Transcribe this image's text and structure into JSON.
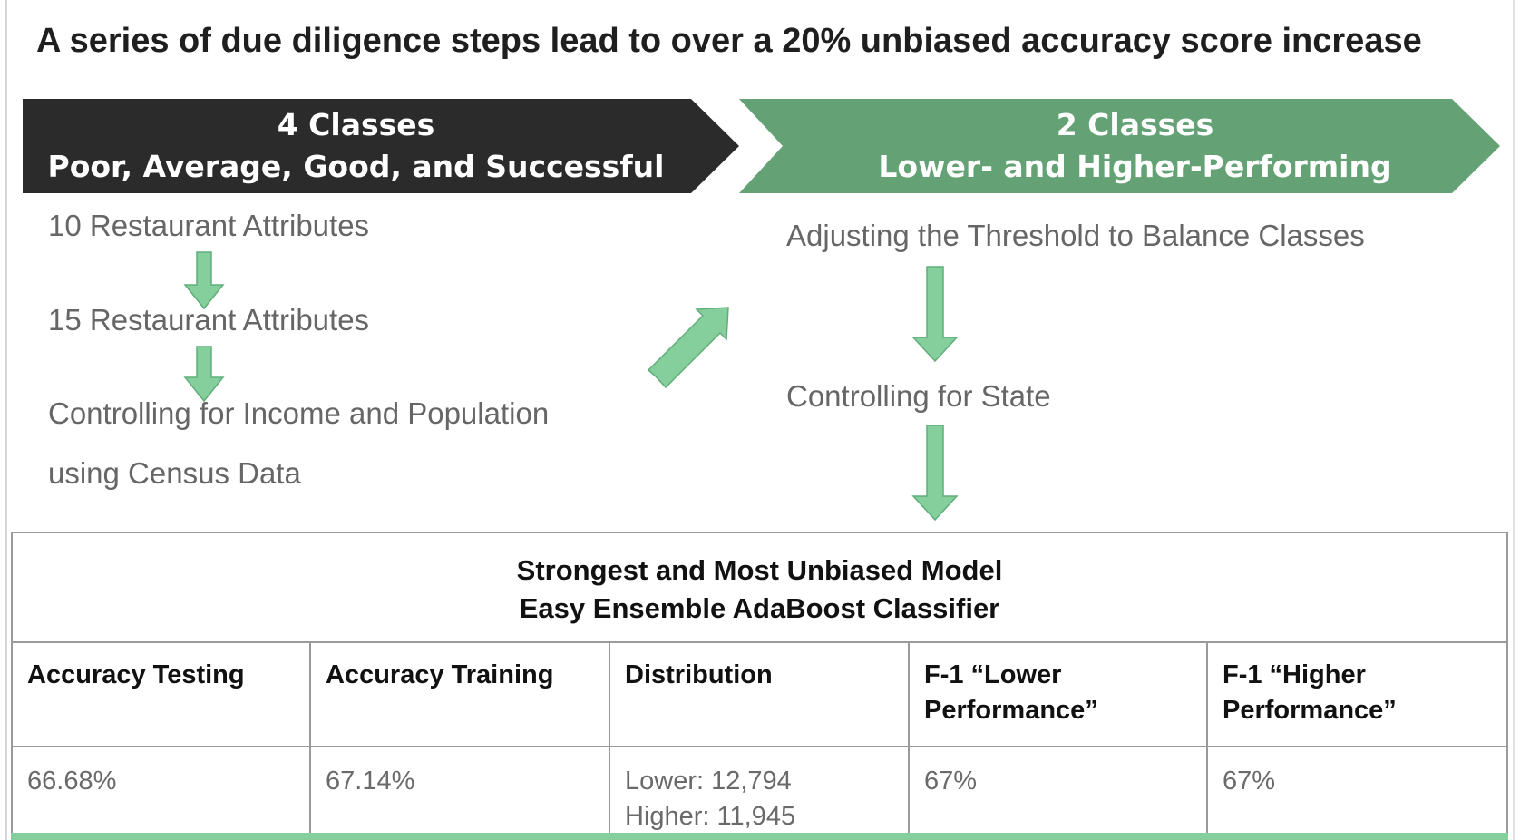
{
  "title": "A series of due diligence steps lead to over a 20% unbiased accuracy score increase",
  "banners": {
    "left": {
      "line1": "4 Classes",
      "line2": "Poor, Average, Good, and Successful",
      "color": "#2b2b2b"
    },
    "right": {
      "line1": "2 Classes",
      "line2": "Lower- and Higher-Performing",
      "color": "#64a275"
    }
  },
  "left_steps": [
    "10 Restaurant Attributes",
    "15 Restaurant Attributes",
    "Controlling for Income and Population",
    "using Census Data"
  ],
  "right_steps": [
    "Adjusting the Threshold to Balance Classes",
    "Controlling for State"
  ],
  "arrow_icon": "arrow-icon",
  "arrow_color": "#85cf9d",
  "results": {
    "heading_line1": "Strongest and Most Unbiased Model",
    "heading_line2": "Easy Ensemble AdaBoost Classifier",
    "columns": [
      "Accuracy Testing",
      "Accuracy Training",
      "Distribution",
      "F-1 “Lower Performance”",
      "F-1 “Higher Performance”"
    ],
    "values": {
      "accuracy_testing": "66.68%",
      "accuracy_training": "67.14%",
      "distribution_lower": "Lower: 12,794",
      "distribution_higher": "Higher: 11,945",
      "f1_lower": "67%",
      "f1_higher": "67%"
    }
  }
}
